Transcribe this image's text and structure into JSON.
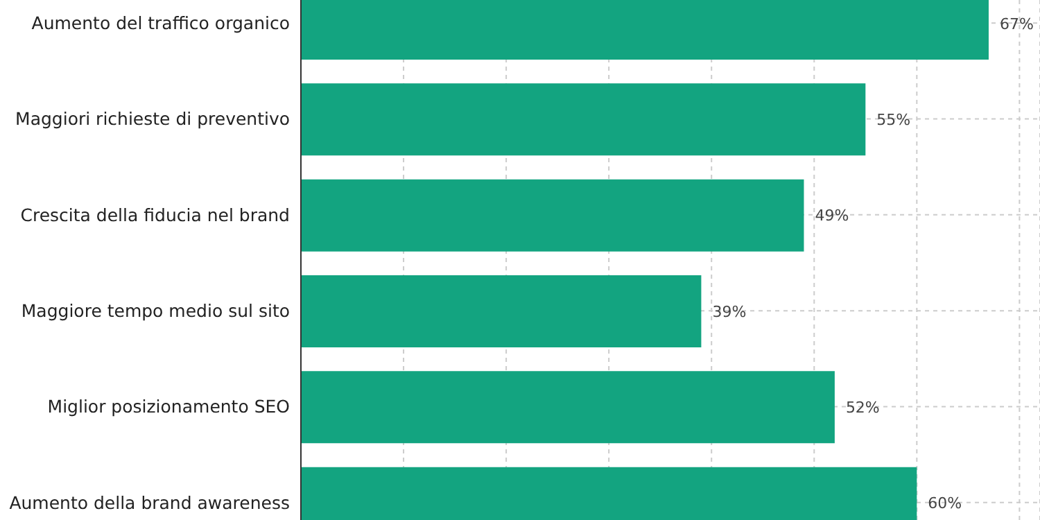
{
  "chart_data": {
    "type": "bar",
    "orientation": "horizontal",
    "categories": [
      "Aumento del traffico organico",
      "Maggiori richieste di preventivo",
      "Crescita della fiducia nel brand",
      "Maggiore tempo medio sul sito",
      "Miglior posizionamento SEO",
      "Aumento della brand awareness"
    ],
    "values": [
      67,
      55,
      49,
      39,
      52,
      60
    ],
    "value_labels": [
      "67%",
      "55%",
      "49%",
      "39%",
      "52%",
      "60%"
    ],
    "color": "#13a480",
    "xlim": [
      0,
      72
    ],
    "xticks": [
      {
        "value": 0,
        "label": null
      },
      {
        "value": 10,
        "label": null
      },
      {
        "value": 20,
        "label": null
      },
      {
        "value": 30,
        "label": null
      },
      {
        "value": 40,
        "label": null
      },
      {
        "value": 50,
        "label": null
      },
      {
        "value": 60,
        "label": null
      },
      {
        "value": 70,
        "label": null
      }
    ],
    "tick_labels": "y",
    "grid": true
  }
}
